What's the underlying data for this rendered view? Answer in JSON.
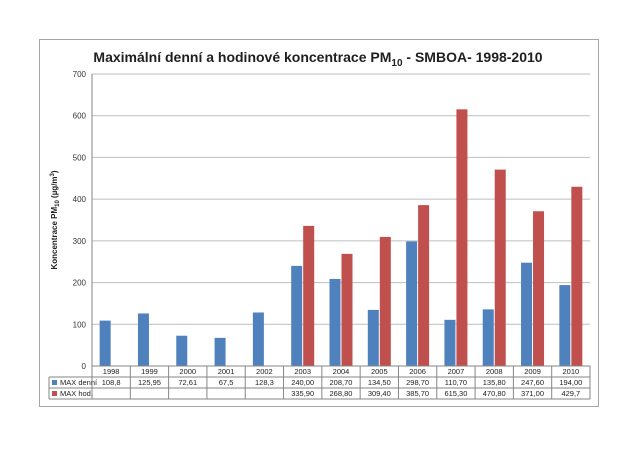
{
  "chart_data": {
    "type": "bar",
    "title": "Maximální denní a hodinové koncentrace PM",
    "title_sub": "10",
    "title_suffix": " - SMBOA- 1998-2010",
    "ylabel": "Koncentrace PM",
    "ylabel_sub": "10",
    "ylabel_unit": " (µg/m",
    "ylabel_sup": "3",
    "ylabel_close": ")",
    "ylim": [
      0,
      700
    ],
    "yticks": [
      "0",
      "100",
      "200",
      "300",
      "400",
      "500",
      "600",
      "700"
    ],
    "grid": true,
    "legend_position": "data-table",
    "categories": [
      "1998",
      "1999",
      "2000",
      "2001",
      "2002",
      "2003",
      "2004",
      "2005",
      "2006",
      "2007",
      "2008",
      "2009",
      "2010"
    ],
    "series": [
      {
        "name": "MAX denní",
        "color": "#4f81bd",
        "values": [
          108.8,
          125.95,
          72.61,
          67.5,
          128.3,
          240.0,
          208.7,
          134.5,
          298.7,
          110.7,
          135.8,
          247.6,
          194.0
        ],
        "labels": [
          "108,8",
          "125,95",
          "72,61",
          "67,5",
          "128,3",
          "240,00",
          "208,70",
          "134,50",
          "298,70",
          "110,70",
          "135,80",
          "247,60",
          "194,00"
        ]
      },
      {
        "name": "MAX hod.",
        "color": "#c0504d",
        "values": [
          null,
          null,
          null,
          null,
          null,
          335.9,
          268.8,
          309.4,
          385.7,
          615.3,
          470.8,
          371.0,
          429.7
        ],
        "labels": [
          "",
          "",
          "",
          "",
          "",
          "335,90",
          "268,80",
          "309,40",
          "385,70",
          "615,30",
          "470,80",
          "371,00",
          "429,7"
        ]
      }
    ]
  }
}
